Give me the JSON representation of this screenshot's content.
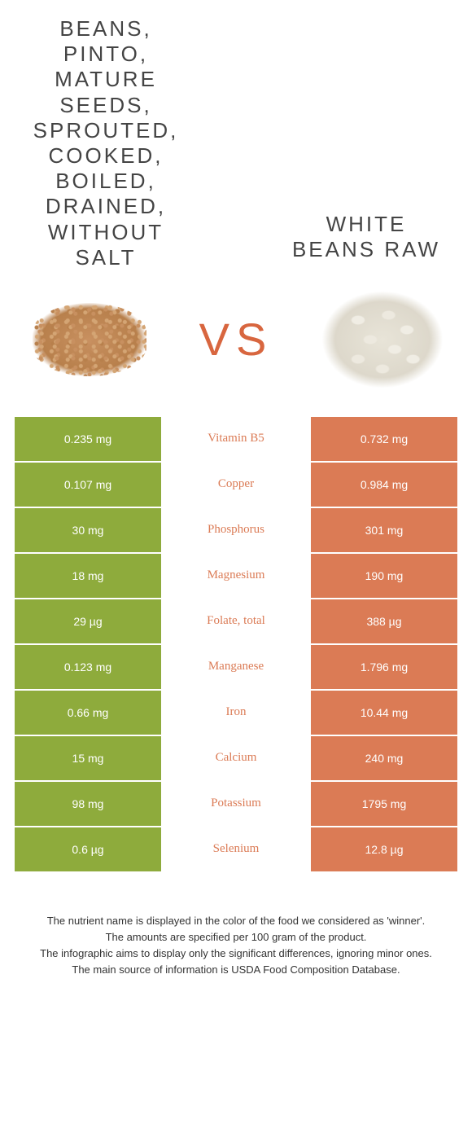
{
  "colors": {
    "left_bg": "#8eab3c",
    "right_bg": "#db7b55",
    "mid_left": "#8eab3c",
    "mid_right": "#db7b55",
    "vs": "#d8663f"
  },
  "left_title": "BEANS, PINTO, MATURE SEEDS, SPROUTED, COOKED, BOILED, DRAINED, WITHOUT SALT",
  "right_title": "WHITE BEANS RAW",
  "vs": "VS",
  "rows": [
    {
      "nutrient": "Vitamin B5",
      "left": "0.235 mg",
      "right": "0.732 mg",
      "winner": "right"
    },
    {
      "nutrient": "Copper",
      "left": "0.107 mg",
      "right": "0.984 mg",
      "winner": "right"
    },
    {
      "nutrient": "Phosphorus",
      "left": "30 mg",
      "right": "301 mg",
      "winner": "right"
    },
    {
      "nutrient": "Magnesium",
      "left": "18 mg",
      "right": "190 mg",
      "winner": "right"
    },
    {
      "nutrient": "Folate, total",
      "left": "29 µg",
      "right": "388 µg",
      "winner": "right"
    },
    {
      "nutrient": "Manganese",
      "left": "0.123 mg",
      "right": "1.796 mg",
      "winner": "right"
    },
    {
      "nutrient": "Iron",
      "left": "0.66 mg",
      "right": "10.44 mg",
      "winner": "right"
    },
    {
      "nutrient": "Calcium",
      "left": "15 mg",
      "right": "240 mg",
      "winner": "right"
    },
    {
      "nutrient": "Potassium",
      "left": "98 mg",
      "right": "1795 mg",
      "winner": "right"
    },
    {
      "nutrient": "Selenium",
      "left": "0.6 µg",
      "right": "12.8 µg",
      "winner": "right"
    }
  ],
  "footer": [
    "The nutrient name is displayed in the color of the food we considered as 'winner'.",
    "The amounts are specified per 100 gram of the product.",
    "The infographic aims to display only the significant differences, ignoring minor ones.",
    "The main source of information is USDA Food Composition Database."
  ]
}
